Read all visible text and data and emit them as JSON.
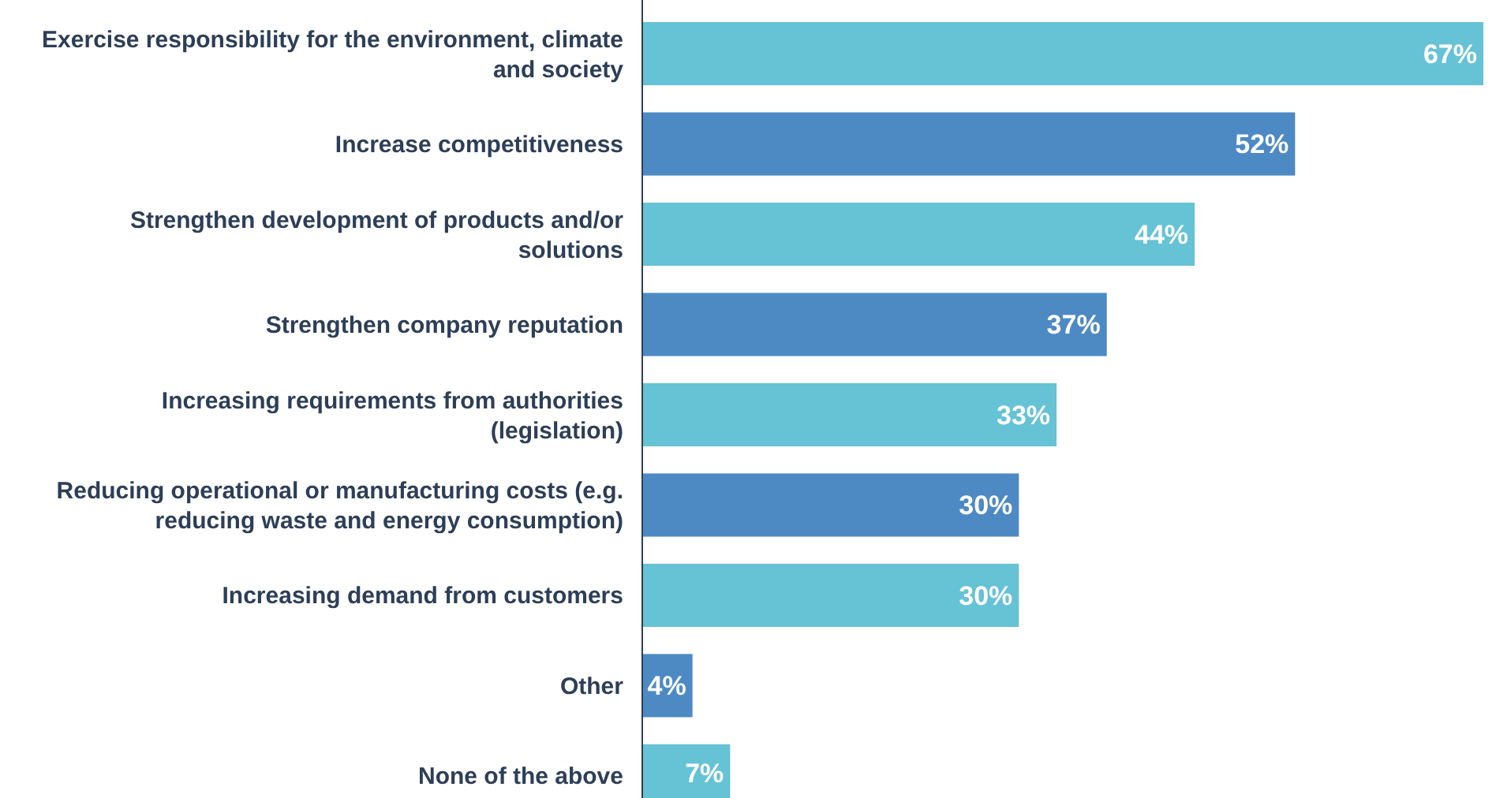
{
  "chart_data": {
    "type": "bar",
    "orientation": "horizontal",
    "categories": [
      "Exercise responsibility for the environment, climate and society",
      "Increase competitiveness",
      "Strengthen development of products and/or solutions",
      "Strengthen company reputation",
      "Increasing requirements from authorities (legislation)",
      "Reducing operational or manufacturing costs (e.g. reducing waste and energy consumption)",
      "Increasing demand from customers",
      "Other",
      "None of the above"
    ],
    "values": [
      67,
      52,
      44,
      37,
      33,
      30,
      30,
      4,
      7
    ],
    "colors": [
      "#66c2d5",
      "#4d8ac4",
      "#66c2d5",
      "#4d8ac4",
      "#66c2d5",
      "#4d8ac4",
      "#66c2d5",
      "#4d8ac4",
      "#66c2d5"
    ],
    "value_labels": [
      "67%",
      "52%",
      "44%",
      "37%",
      "33%",
      "30%",
      "30%",
      "4%",
      "7%"
    ]
  }
}
